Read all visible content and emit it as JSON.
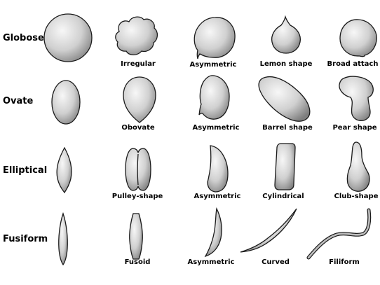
{
  "rows": [
    {
      "label": "Globose",
      "shapes": [
        {
          "name": "globose",
          "label": ""
        },
        {
          "name": "irregular",
          "label": "Irregular"
        },
        {
          "name": "asymmetric-globose",
          "label": "Asymmetric"
        },
        {
          "name": "lemon-shape",
          "label": "Lemon shape"
        },
        {
          "name": "broad-attach",
          "label": "Broad attach"
        }
      ]
    },
    {
      "label": "Ovate",
      "shapes": [
        {
          "name": "ovate",
          "label": ""
        },
        {
          "name": "obovate",
          "label": "Obovate"
        },
        {
          "name": "asymmetric-ovate",
          "label": "Asymmetric"
        },
        {
          "name": "barrel-shape",
          "label": "Barrel shape"
        },
        {
          "name": "pear-shape",
          "label": "Pear shape"
        }
      ]
    },
    {
      "label": "Elliptical",
      "shapes": [
        {
          "name": "elliptical",
          "label": ""
        },
        {
          "name": "pulley-shape",
          "label": "Pulley-shape"
        },
        {
          "name": "asymmetric-elliptical",
          "label": "Asymmetric"
        },
        {
          "name": "cylindrical",
          "label": "Cylindrical"
        },
        {
          "name": "club-shape",
          "label": "Club-shape"
        }
      ]
    },
    {
      "label": "Fusiform",
      "shapes": [
        {
          "name": "fusiform",
          "label": ""
        },
        {
          "name": "fusoid",
          "label": "Fusoid"
        },
        {
          "name": "asymmetric-fusiform",
          "label": "Asymmetric"
        },
        {
          "name": "curved",
          "label": "Curved"
        },
        {
          "name": "filiform",
          "label": "Filiform"
        }
      ]
    }
  ],
  "colors": {
    "fill_light": "#f4f4f4",
    "fill_dark": "#8c8c8c",
    "stroke": "#1a1a1a"
  }
}
